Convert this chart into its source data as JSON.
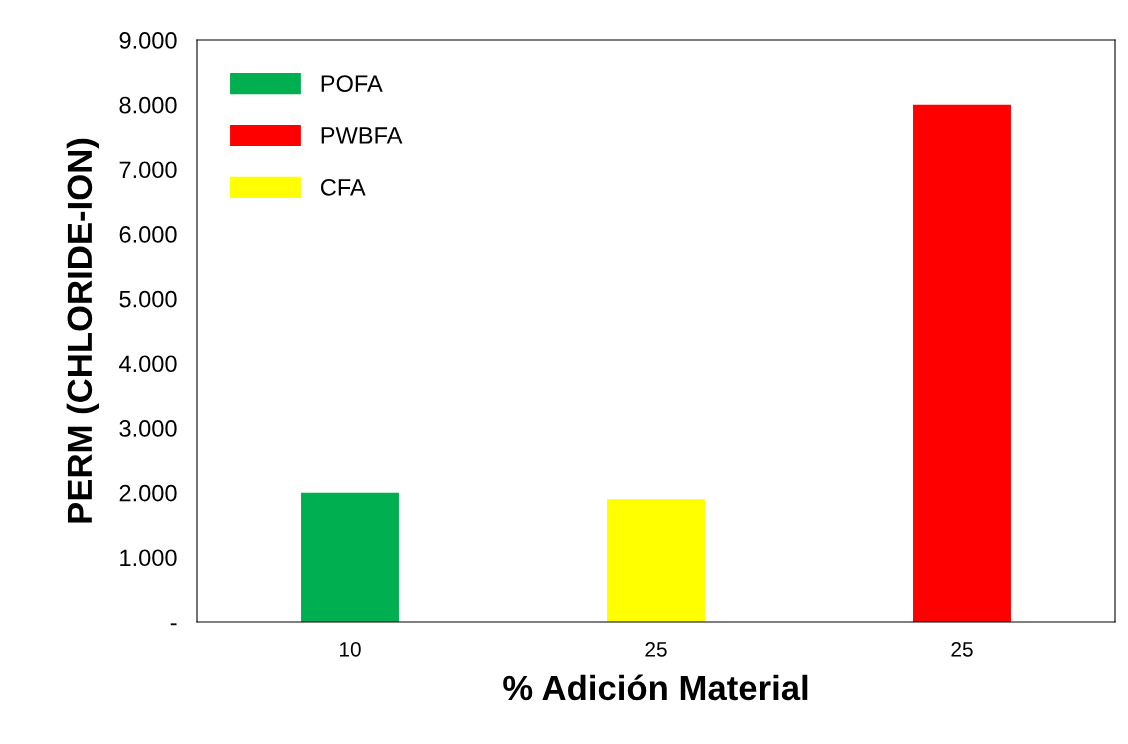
{
  "chart_data": {
    "type": "bar",
    "xlabel": "% Adición Material",
    "ylabel": "PERM (CHLORIDE-ION)",
    "categories": [
      "10",
      "25",
      "25"
    ],
    "series": [
      {
        "name": "POFA",
        "color": "#00b050",
        "values": [
          2000,
          null,
          null
        ]
      },
      {
        "name": "PWBFA",
        "color": "#ff0000",
        "values": [
          null,
          null,
          8000
        ]
      },
      {
        "name": "CFA",
        "color": "#ffff00",
        "values": [
          null,
          1900,
          null
        ]
      }
    ],
    "ylim": [
      0,
      9000
    ],
    "yticks": [
      {
        "value": 0,
        "label": "-"
      },
      {
        "value": 1000,
        "label": "1.000"
      },
      {
        "value": 2000,
        "label": "2.000"
      },
      {
        "value": 3000,
        "label": "3.000"
      },
      {
        "value": 4000,
        "label": "4.000"
      },
      {
        "value": 5000,
        "label": "5.000"
      },
      {
        "value": 6000,
        "label": "6.000"
      },
      {
        "value": 7000,
        "label": "7.000"
      },
      {
        "value": 8000,
        "label": "8.000"
      },
      {
        "value": 9000,
        "label": "9.000"
      }
    ],
    "grid": false,
    "legend": "top left"
  }
}
